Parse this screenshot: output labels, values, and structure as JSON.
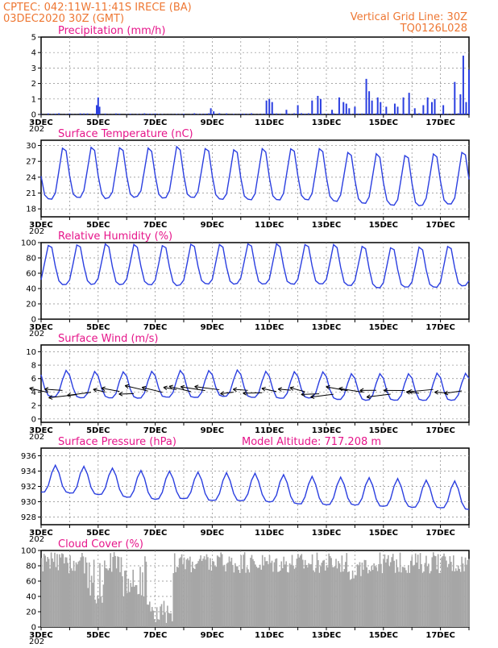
{
  "header": {
    "line1": "CPTEC:   042:11W-11:41S   IRECE (BA)",
    "line2": "03DEC2020 30Z (GMT)",
    "grid_note": "Vertical Grid Line: 30Z",
    "run_id": "TQ0126L028"
  },
  "colors": {
    "header": "#ee7733",
    "title": "#e6158a",
    "series": "#2b3fe0",
    "cloud": "#a6a6a6",
    "arrow": "#000000"
  },
  "x_axis": {
    "start_day": 3,
    "end_day": 18,
    "tick_labels": [
      "3DEC",
      "5DEC",
      "7DEC",
      "9DEC",
      "11DEC",
      "13DEC",
      "15DEC",
      "17DEC"
    ],
    "tick_days": [
      3,
      5,
      7,
      9,
      11,
      13,
      15,
      17
    ],
    "year_stub": "202"
  },
  "chart_data": [
    {
      "id": "precip",
      "type": "bar",
      "title": "Precipitation (mm/h)",
      "ylim": [
        0,
        5
      ],
      "yticks": [
        0,
        1,
        2,
        3,
        4,
        5
      ],
      "grid": true,
      "events": [
        [
          4.95,
          0.6
        ],
        [
          5.0,
          1.1
        ],
        [
          5.05,
          0.5
        ],
        [
          8.95,
          0.4
        ],
        [
          9.05,
          0.2
        ],
        [
          10.9,
          0.9
        ],
        [
          11.0,
          1.0
        ],
        [
          11.1,
          0.8
        ],
        [
          11.6,
          0.3
        ],
        [
          12.0,
          0.6
        ],
        [
          12.5,
          0.9
        ],
        [
          12.7,
          1.2
        ],
        [
          12.8,
          1.0
        ],
        [
          13.2,
          0.3
        ],
        [
          13.45,
          1.1
        ],
        [
          13.6,
          0.8
        ],
        [
          13.7,
          0.7
        ],
        [
          13.8,
          0.4
        ],
        [
          14.0,
          0.5
        ],
        [
          14.4,
          2.3
        ],
        [
          14.5,
          1.5
        ],
        [
          14.6,
          0.9
        ],
        [
          14.8,
          1.1
        ],
        [
          14.9,
          0.8
        ],
        [
          15.1,
          0.5
        ],
        [
          15.4,
          0.7
        ],
        [
          15.5,
          0.5
        ],
        [
          15.7,
          1.1
        ],
        [
          15.9,
          1.4
        ],
        [
          16.1,
          0.4
        ],
        [
          16.4,
          0.6
        ],
        [
          16.55,
          1.1
        ],
        [
          16.7,
          0.8
        ],
        [
          16.8,
          1.0
        ],
        [
          17.1,
          0.6
        ],
        [
          17.5,
          2.1
        ],
        [
          17.7,
          1.3
        ],
        [
          17.8,
          3.8
        ],
        [
          17.9,
          0.8
        ],
        [
          18.0,
          2.9
        ]
      ]
    },
    {
      "id": "temperature",
      "type": "line",
      "title": "Surface Temperature (nC)",
      "ylim": [
        16.5,
        31
      ],
      "yticks": [
        18,
        21,
        24,
        27,
        30
      ],
      "grid": true,
      "mean": 23.5,
      "amplitude": 5.5,
      "peak_phase": 0.8
    },
    {
      "id": "humidity",
      "type": "line",
      "title": "Relative Humidity (%)",
      "ylim": [
        0,
        100
      ],
      "yticks": [
        0,
        20,
        40,
        60,
        80,
        100
      ],
      "grid": true,
      "mean": 66,
      "amplitude": 30,
      "peak_phase": 0.3
    },
    {
      "id": "wind",
      "type": "line",
      "title": "Surface Wind (m/s)",
      "ylim": [
        -0.5,
        11
      ],
      "yticks": [
        0,
        2,
        4,
        6,
        8,
        10
      ],
      "grid": true,
      "mean": 4.8,
      "amplitude": 2.2,
      "peak_phase": 0.9,
      "vectors": true
    },
    {
      "id": "pressure",
      "type": "line",
      "title": "Surface Pressure (hPa)",
      "subtitle": "Model Altitude: 717.208  m",
      "ylim": [
        927,
        937
      ],
      "yticks": [
        928,
        930,
        932,
        934,
        936
      ],
      "grid": true,
      "mean": 932.0,
      "amplitude": 2.0,
      "peak_phase": 0.5
    },
    {
      "id": "cloud",
      "type": "area",
      "title": "Cloud Cover (%)",
      "ylim": [
        0,
        100
      ],
      "yticks": [
        0,
        20,
        40,
        60,
        80,
        100
      ],
      "grid": true
    }
  ]
}
